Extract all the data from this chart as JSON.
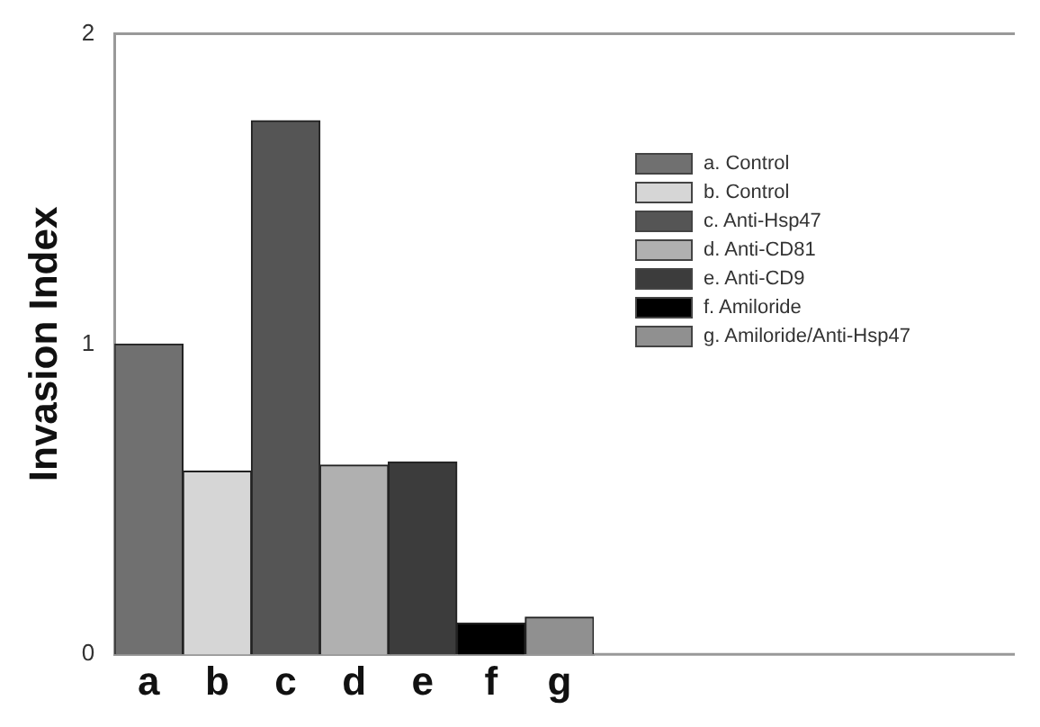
{
  "chart_data": {
    "type": "bar",
    "ylabel": "Invasion Index",
    "categories": [
      "a",
      "b",
      "c",
      "d",
      "e",
      "f",
      "g"
    ],
    "series": [
      {
        "name": "a. Control",
        "color": "#707070",
        "values": [
          1.0,
          null,
          null,
          null,
          null,
          null,
          null
        ]
      },
      {
        "name": "b. Control",
        "color": "#d6d6d6",
        "values": [
          null,
          0.59,
          null,
          null,
          null,
          null,
          null
        ]
      },
      {
        "name": "c. Anti-Hsp47",
        "color": "#555555",
        "values": [
          null,
          null,
          1.72,
          null,
          null,
          null,
          null
        ]
      },
      {
        "name": "d. Anti-CD81",
        "color": "#b0b0b0",
        "values": [
          null,
          null,
          null,
          0.61,
          null,
          null,
          null
        ]
      },
      {
        "name": "e. Anti-CD9",
        "color": "#3c3c3c",
        "values": [
          null,
          null,
          null,
          null,
          0.62,
          null,
          null
        ]
      },
      {
        "name": "f. Amiloride",
        "color": "#000000",
        "values": [
          null,
          null,
          null,
          null,
          null,
          0.1,
          null
        ]
      },
      {
        "name": "g. Amiloride/Anti-Hsp47",
        "color": "#909090",
        "values": [
          null,
          null,
          null,
          null,
          null,
          null,
          0.12
        ]
      }
    ],
    "ylim": [
      0,
      2
    ],
    "yticks": [
      0,
      1,
      2
    ],
    "grid": false,
    "legend": "top right"
  }
}
